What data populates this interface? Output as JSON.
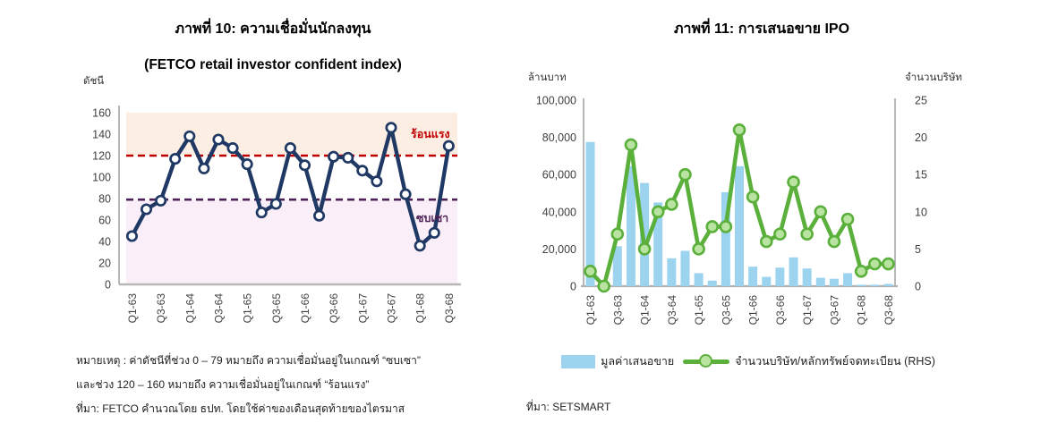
{
  "figure10": {
    "title": "ภาพที่ 10: ความเชื่อมั่นนักลงทุน",
    "subtitle": "(FETCO retail investor confident index)",
    "axis_unit": "ดัชนี",
    "zone_hot_label": "ร้อนแรง",
    "zone_sluggish_label": "ซบเซา",
    "notes": [
      "หมายเหตุ : ค่าดัชนีที่ช่วง 0 – 79 หมายถึง ความเชื่อมั่นอยู่ในเกณฑ์ “ซบเซา”",
      "และช่วง 120 – 160 หมายถึง ความเชื่อมั่นอยู่ในเกณฑ์ “ร้อนแรง”",
      "ที่มา: FETCO คำนวณโดย ธปท. โดยใช้ค่าของเดือนสุดท้ายของไตรมาส"
    ]
  },
  "figure11": {
    "title": "ภาพที่ 11: การเสนอขาย IPO",
    "left_axis_unit": "ล้านบาท",
    "right_axis_unit": "จำนวนบริษัท",
    "legend": {
      "bar_label": "มูลค่าเสนอขาย",
      "line_label": "จำนวนบริษัท/หลักทรัพย์จดทะเบียน (RHS)"
    },
    "source": "ที่มา: SETSMART"
  },
  "colors": {
    "navy_line": "#1f3864",
    "hot_line": "#c00000",
    "sluggish_line": "#4d2058",
    "hot_band": "#fdeee3",
    "sluggish_band": "#faeff8",
    "bar_blue": "#9cd4ef",
    "green_line": "#5bb03c",
    "green_marker_fill": "#b9e3a1",
    "axis_gray": "#a6a6a6",
    "tick_text": "#404040"
  },
  "chart_data": [
    {
      "type": "line",
      "title": "ภาพที่ 10: ความเชื่อมั่นนักลงทุน (FETCO retail investor confident index)",
      "ylabel": "ดัชนี",
      "x": [
        "Q1-63",
        "Q2-63",
        "Q3-63",
        "Q4-63",
        "Q1-64",
        "Q2-64",
        "Q3-64",
        "Q4-64",
        "Q1-65",
        "Q2-65",
        "Q3-65",
        "Q4-65",
        "Q1-66",
        "Q2-66",
        "Q3-66",
        "Q4-66",
        "Q1-67",
        "Q2-67",
        "Q3-67",
        "Q4-67",
        "Q1-68",
        "Q2-68",
        "Q3-68"
      ],
      "x_shown_ticks": [
        "Q1-63",
        "Q3-63",
        "Q1-64",
        "Q3-64",
        "Q1-65",
        "Q3-65",
        "Q1-66",
        "Q3-66",
        "Q1-67",
        "Q3-67",
        "Q1-68",
        "Q3-68"
      ],
      "values": [
        45,
        70,
        78,
        117,
        138,
        108,
        135,
        127,
        112,
        67,
        75,
        127,
        111,
        64,
        119,
        118,
        106,
        96,
        146,
        84,
        36,
        48,
        129
      ],
      "ylim": [
        0,
        160
      ],
      "yticks": [
        0,
        20,
        40,
        60,
        80,
        100,
        120,
        140,
        160
      ],
      "grid": false,
      "bands": [
        {
          "from": 120,
          "to": 160,
          "color": "#fdeee3",
          "label": "ร้อนแรง"
        },
        {
          "from": 0,
          "to": 79,
          "color": "#faeff8",
          "label": "ซบเซา"
        }
      ],
      "reference_lines": [
        {
          "value": 120,
          "color": "#c00000",
          "label": "ร้อนแรง"
        },
        {
          "value": 79,
          "color": "#4d2058",
          "label": "ซบเซา"
        }
      ],
      "line_color": "#1f3864",
      "marker_fill": "#ffffff"
    },
    {
      "type": "bar+line",
      "title": "ภาพที่ 11: การเสนอขาย IPO",
      "categories": [
        "Q1-63",
        "Q2-63",
        "Q3-63",
        "Q4-63",
        "Q1-64",
        "Q2-64",
        "Q3-64",
        "Q4-64",
        "Q1-65",
        "Q2-65",
        "Q3-65",
        "Q4-65",
        "Q1-66",
        "Q2-66",
        "Q3-66",
        "Q4-66",
        "Q1-67",
        "Q2-67",
        "Q3-67",
        "Q4-67",
        "Q1-68",
        "Q2-68",
        "Q3-68"
      ],
      "x_shown_ticks": [
        "Q1-63",
        "Q3-63",
        "Q1-64",
        "Q3-64",
        "Q1-65",
        "Q3-65",
        "Q1-66",
        "Q3-66",
        "Q1-67",
        "Q3-67",
        "Q1-68",
        "Q3-68"
      ],
      "series": [
        {
          "name": "มูลค่าเสนอขาย",
          "type": "bar",
          "axis": "left",
          "color": "#9cd4ef",
          "values": [
            77500,
            0,
            21500,
            64500,
            55500,
            45000,
            15000,
            19000,
            7000,
            3000,
            50500,
            64500,
            10500,
            5000,
            10000,
            15500,
            9500,
            4500,
            4000,
            7000,
            800,
            800,
            1200
          ]
        },
        {
          "name": "จำนวนบริษัท/หลักทรัพย์จดทะเบียน (RHS)",
          "type": "line",
          "axis": "right",
          "color": "#5bb03c",
          "marker_fill": "#b9e3a1",
          "values": [
            2,
            0,
            7,
            19,
            5,
            10,
            11,
            15,
            5,
            8,
            8,
            21,
            12,
            6,
            7,
            14,
            7,
            10,
            6,
            9,
            2,
            3,
            3
          ]
        }
      ],
      "left_ylim": [
        0,
        100000
      ],
      "right_ylim": [
        0,
        25
      ],
      "left_yticks": [
        0,
        20000,
        40000,
        60000,
        80000,
        100000
      ],
      "right_yticks": [
        0,
        5,
        10,
        15,
        20,
        25
      ],
      "left_axis_label": "ล้านบาท",
      "right_axis_label": "จำนวนบริษัท",
      "legend_position": "bottom"
    }
  ]
}
